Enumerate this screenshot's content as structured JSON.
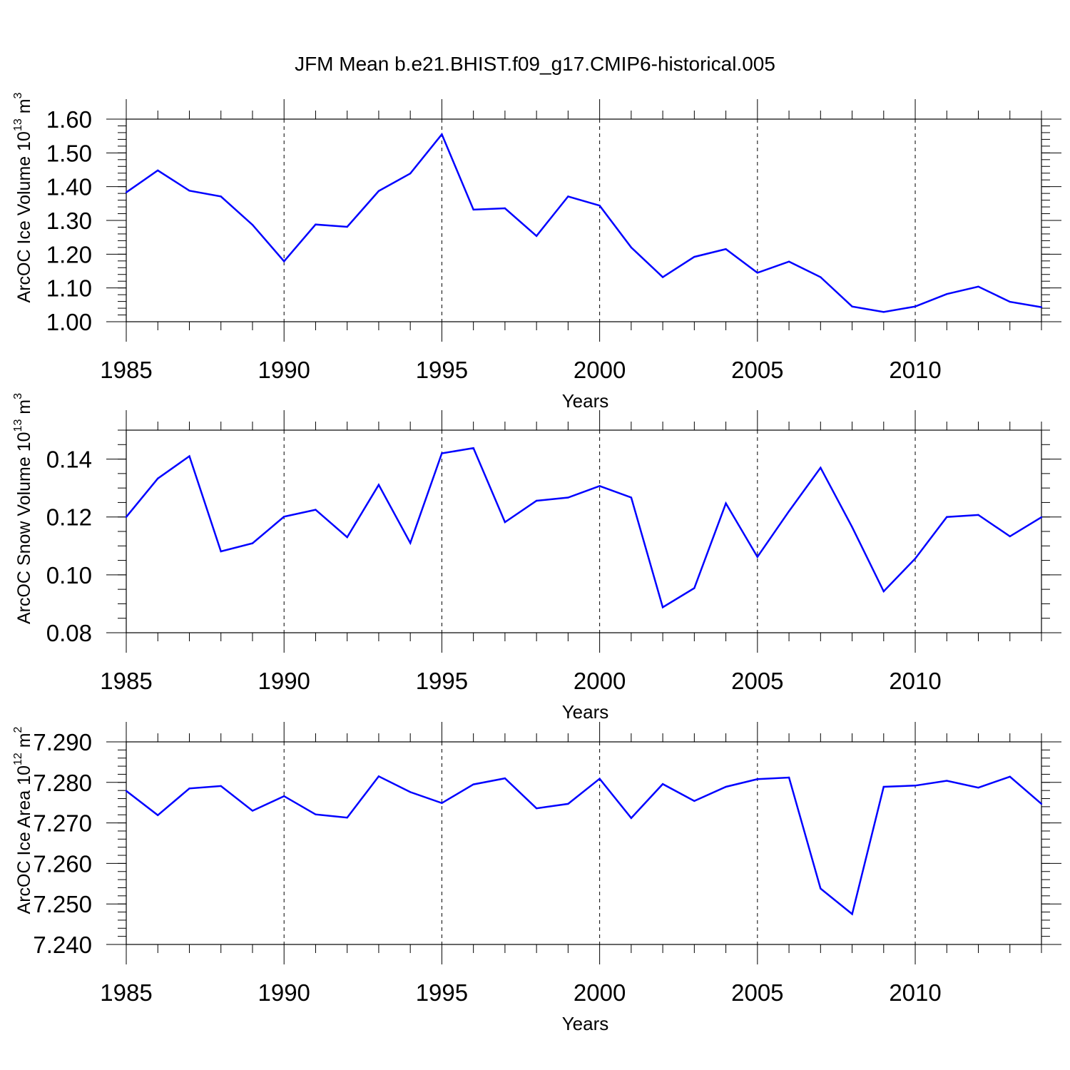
{
  "title": "JFM Mean b.e21.BHIST.f09_g17.CMIP6-historical.005",
  "line_color": "#0000ff",
  "chart_data": [
    {
      "type": "line",
      "ylabel": {
        "text": "ArcOC Ice Volume 10",
        "exponent": "13",
        "unit_text": " m",
        "unit_exponent": "3"
      },
      "xlabel": "Years",
      "xlim": [
        1985,
        2014
      ],
      "ylim": [
        1.0,
        1.6
      ],
      "yticks": [
        1.0,
        1.1,
        1.2,
        1.3,
        1.4,
        1.5,
        1.6
      ],
      "ytick_labels": [
        "1.00",
        "1.10",
        "1.20",
        "1.30",
        "1.40",
        "1.50",
        "1.60"
      ],
      "yminor": 0.02,
      "xticks": [
        1985,
        1990,
        1995,
        2000,
        2005,
        2010
      ],
      "xtick_labels": [
        "1985",
        "1990",
        "1995",
        "2000",
        "2005",
        "2010"
      ],
      "gridlines_x": [
        1990,
        1995,
        2000,
        2005,
        2010
      ],
      "x": [
        1985,
        1986,
        1987,
        1988,
        1989,
        1990,
        1991,
        1992,
        1993,
        1994,
        1995,
        1996,
        1997,
        1998,
        1999,
        2000,
        2001,
        2002,
        2003,
        2004,
        2005,
        2006,
        2007,
        2008,
        2009,
        2010,
        2011,
        2012,
        2013,
        2014
      ],
      "y": [
        1.383,
        1.448,
        1.388,
        1.371,
        1.287,
        1.179,
        1.288,
        1.281,
        1.387,
        1.439,
        1.555,
        1.332,
        1.336,
        1.254,
        1.371,
        1.344,
        1.22,
        1.132,
        1.192,
        1.215,
        1.145,
        1.178,
        1.132,
        1.045,
        1.029,
        1.045,
        1.082,
        1.104,
        1.059,
        1.043
      ]
    },
    {
      "type": "line",
      "ylabel": {
        "text": "ArcOC Snow Volume 10",
        "exponent": "13",
        "unit_text": " m",
        "unit_exponent": "3"
      },
      "xlabel": "Years",
      "xlim": [
        1985,
        2014
      ],
      "ylim": [
        0.08,
        0.15
      ],
      "yticks": [
        0.08,
        0.1,
        0.12,
        0.14
      ],
      "ytick_labels": [
        "0.08",
        "0.10",
        "0.12",
        "0.14"
      ],
      "yminor": 0.005,
      "xticks": [
        1985,
        1990,
        1995,
        2000,
        2005,
        2010
      ],
      "xtick_labels": [
        "1985",
        "1990",
        "1995",
        "2000",
        "2005",
        "2010"
      ],
      "gridlines_x": [
        1990,
        1995,
        2000,
        2005,
        2010
      ],
      "x": [
        1985,
        1986,
        1987,
        1988,
        1989,
        1990,
        1991,
        1992,
        1993,
        1994,
        1995,
        1996,
        1997,
        1998,
        1999,
        2000,
        2001,
        2002,
        2003,
        2004,
        2005,
        2006,
        2007,
        2008,
        2009,
        2010,
        2011,
        2012,
        2013,
        2014
      ],
      "y": [
        0.12,
        0.1333,
        0.141,
        0.1081,
        0.1109,
        0.1201,
        0.1225,
        0.113,
        0.1311,
        0.111,
        0.142,
        0.1438,
        0.1182,
        0.1256,
        0.1267,
        0.1307,
        0.1267,
        0.0888,
        0.0954,
        0.1247,
        0.1062,
        0.122,
        0.137,
        0.1165,
        0.0943,
        0.1056,
        0.12,
        0.1207,
        0.1133,
        0.1199
      ]
    },
    {
      "type": "line",
      "ylabel": {
        "text": "ArcOC Ice Area 10",
        "exponent": "12",
        "unit_text": " m",
        "unit_exponent": "2"
      },
      "xlabel": "Years",
      "xlim": [
        1985,
        2014
      ],
      "ylim": [
        7.24,
        7.29
      ],
      "yticks": [
        7.24,
        7.25,
        7.26,
        7.27,
        7.28,
        7.29
      ],
      "ytick_labels": [
        "7.240",
        "7.250",
        "7.260",
        "7.270",
        "7.280",
        "7.290"
      ],
      "yminor": 0.002,
      "xticks": [
        1985,
        1990,
        1995,
        2000,
        2005,
        2010
      ],
      "xtick_labels": [
        "1985",
        "1990",
        "1995",
        "2000",
        "2005",
        "2010"
      ],
      "gridlines_x": [
        1990,
        1995,
        2000,
        2005,
        2010
      ],
      "x": [
        1985,
        1986,
        1987,
        1988,
        1989,
        1990,
        1991,
        1992,
        1993,
        1994,
        1995,
        1996,
        1997,
        1998,
        1999,
        2000,
        2001,
        2002,
        2003,
        2004,
        2005,
        2006,
        2007,
        2008,
        2009,
        2010,
        2011,
        2012,
        2013,
        2014
      ],
      "y": [
        7.2779,
        7.2719,
        7.2785,
        7.2791,
        7.273,
        7.2766,
        7.2721,
        7.2713,
        7.2815,
        7.2776,
        7.2749,
        7.2795,
        7.281,
        7.2736,
        7.2747,
        7.2809,
        7.2712,
        7.2796,
        7.2754,
        7.2789,
        7.2808,
        7.2812,
        7.2538,
        7.2475,
        7.2789,
        7.2792,
        7.2804,
        7.2787,
        7.2814,
        7.2747
      ]
    }
  ]
}
